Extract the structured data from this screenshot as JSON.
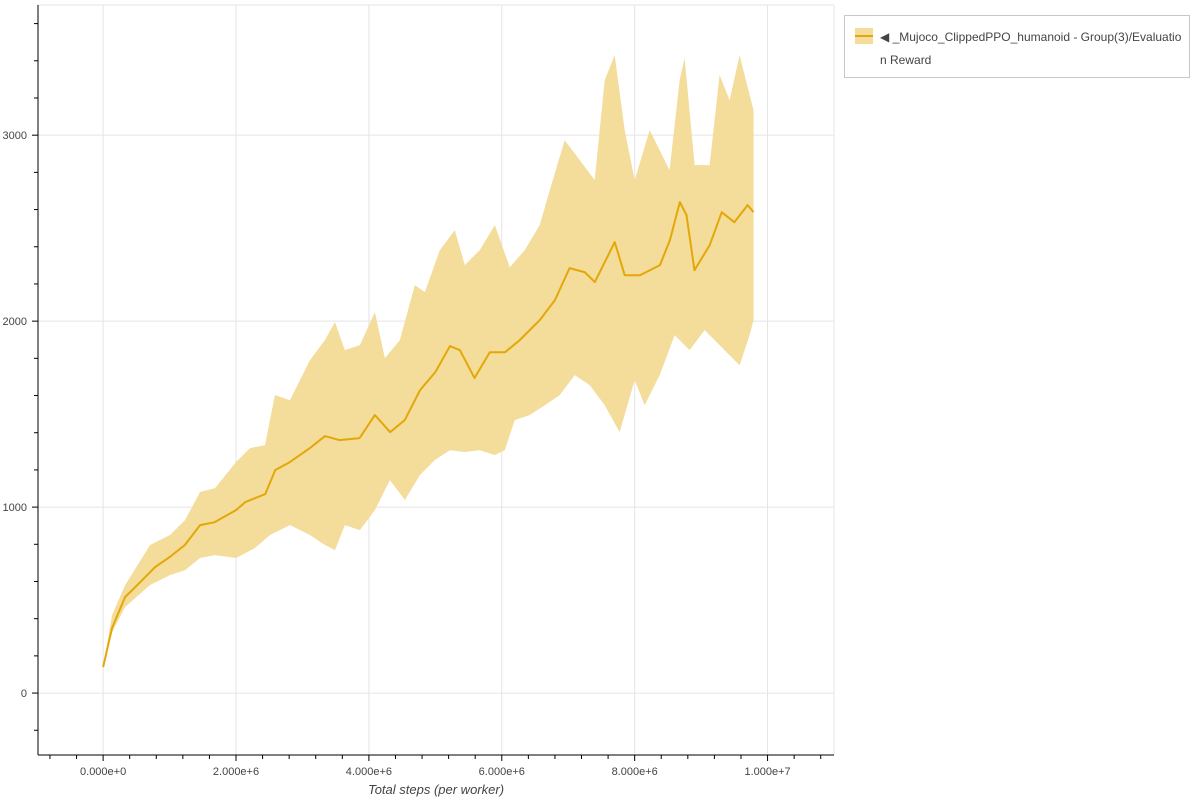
{
  "chart_data": {
    "type": "line",
    "title": "",
    "xlabel": "Total steps (per worker)",
    "ylabel": "",
    "xlim": [
      -980000,
      11000000
    ],
    "ylim": [
      -333,
      3700
    ],
    "x_ticks": [
      0,
      2000000,
      4000000,
      6000000,
      8000000,
      10000000
    ],
    "x_tick_labels": [
      "0.000e+0",
      "2.000e+6",
      "4.000e+6",
      "6.000e+6",
      "8.000e+6",
      "1.000e+7"
    ],
    "y_ticks": [
      0,
      1000,
      2000,
      3000
    ],
    "y_tick_labels": [
      "0",
      "1000",
      "2000",
      "3000"
    ],
    "grid": true,
    "legend_position": "outside-top-right",
    "colors": {
      "line": "#e3a808",
      "band": "#f4dc9a"
    },
    "series": [
      {
        "name": "◀ _Mujoco_ClippedPPO_humanoid - Group(3)/Evaluation Reward",
        "mean": [
          [
            0,
            140
          ],
          [
            135000,
            350
          ],
          [
            330000,
            516
          ],
          [
            560000,
            597
          ],
          [
            780000,
            677
          ],
          [
            1000000,
            731
          ],
          [
            1230000,
            796
          ],
          [
            1460000,
            903
          ],
          [
            1680000,
            919
          ],
          [
            2000000,
            984
          ],
          [
            2140000,
            1027
          ],
          [
            2440000,
            1070
          ],
          [
            2590000,
            1199
          ],
          [
            2810000,
            1242
          ],
          [
            3110000,
            1317
          ],
          [
            3340000,
            1382
          ],
          [
            3560000,
            1360
          ],
          [
            3860000,
            1371
          ],
          [
            4090000,
            1495
          ],
          [
            4320000,
            1403
          ],
          [
            4540000,
            1468
          ],
          [
            4770000,
            1629
          ],
          [
            5000000,
            1726
          ],
          [
            5220000,
            1866
          ],
          [
            5370000,
            1844
          ],
          [
            5590000,
            1694
          ],
          [
            5820000,
            1833
          ],
          [
            6050000,
            1833
          ],
          [
            6270000,
            1898
          ],
          [
            6570000,
            2005
          ],
          [
            6800000,
            2113
          ],
          [
            7020000,
            2285
          ],
          [
            7250000,
            2263
          ],
          [
            7400000,
            2210
          ],
          [
            7700000,
            2425
          ],
          [
            7850000,
            2247
          ],
          [
            8080000,
            2247
          ],
          [
            8380000,
            2301
          ],
          [
            8530000,
            2435
          ],
          [
            8680000,
            2640
          ],
          [
            8780000,
            2570
          ],
          [
            8900000,
            2274
          ],
          [
            9130000,
            2409
          ],
          [
            9310000,
            2586
          ],
          [
            9500000,
            2532
          ],
          [
            9700000,
            2624
          ],
          [
            9790000,
            2586
          ]
        ],
        "upper": [
          [
            0,
            140
          ],
          [
            135000,
            420
          ],
          [
            330000,
            580
          ],
          [
            707000,
            796
          ],
          [
            1007000,
            850
          ],
          [
            1233000,
            930
          ],
          [
            1459000,
            1081
          ],
          [
            1684000,
            1102
          ],
          [
            2000000,
            1242
          ],
          [
            2210000,
            1317
          ],
          [
            2436000,
            1333
          ],
          [
            2586000,
            1602
          ],
          [
            2812000,
            1575
          ],
          [
            3113000,
            1790
          ],
          [
            3338000,
            1898
          ],
          [
            3489000,
            1995
          ],
          [
            3639000,
            1844
          ],
          [
            3865000,
            1871
          ],
          [
            4090000,
            2048
          ],
          [
            4241000,
            1801
          ],
          [
            4466000,
            1898
          ],
          [
            4692000,
            2194
          ],
          [
            4842000,
            2156
          ],
          [
            5068000,
            2382
          ],
          [
            5293000,
            2489
          ],
          [
            5444000,
            2301
          ],
          [
            5669000,
            2382
          ],
          [
            5895000,
            2516
          ],
          [
            6120000,
            2290
          ],
          [
            6346000,
            2382
          ],
          [
            6571000,
            2516
          ],
          [
            6722000,
            2704
          ],
          [
            6947000,
            2973
          ],
          [
            7173000,
            2866
          ],
          [
            7398000,
            2758
          ],
          [
            7549000,
            3296
          ],
          [
            7699000,
            3430
          ],
          [
            7850000,
            3027
          ],
          [
            8000000,
            2758
          ],
          [
            8226000,
            3027
          ],
          [
            8376000,
            2919
          ],
          [
            8526000,
            2812
          ],
          [
            8677000,
            3296
          ],
          [
            8752000,
            3414
          ],
          [
            8902000,
            2839
          ],
          [
            9128000,
            2839
          ],
          [
            9278000,
            3323
          ],
          [
            9429000,
            3188
          ],
          [
            9579000,
            3430
          ],
          [
            9789000,
            3134
          ]
        ],
        "lower": [
          [
            0,
            140
          ],
          [
            135000,
            328
          ],
          [
            330000,
            462
          ],
          [
            707000,
            581
          ],
          [
            1007000,
            634
          ],
          [
            1233000,
            661
          ],
          [
            1459000,
            726
          ],
          [
            1684000,
            742
          ],
          [
            2000000,
            726
          ],
          [
            2286000,
            780
          ],
          [
            2511000,
            850
          ],
          [
            2812000,
            903
          ],
          [
            3113000,
            850
          ],
          [
            3338000,
            796
          ],
          [
            3489000,
            769
          ],
          [
            3639000,
            903
          ],
          [
            3865000,
            876
          ],
          [
            4090000,
            984
          ],
          [
            4316000,
            1145
          ],
          [
            4541000,
            1038
          ],
          [
            4767000,
            1172
          ],
          [
            4992000,
            1253
          ],
          [
            5218000,
            1306
          ],
          [
            5444000,
            1296
          ],
          [
            5669000,
            1306
          ],
          [
            5895000,
            1280
          ],
          [
            6045000,
            1306
          ],
          [
            6195000,
            1468
          ],
          [
            6421000,
            1495
          ],
          [
            6647000,
            1548
          ],
          [
            6872000,
            1602
          ],
          [
            7098000,
            1710
          ],
          [
            7323000,
            1656
          ],
          [
            7549000,
            1548
          ],
          [
            7774000,
            1403
          ],
          [
            8000000,
            1683
          ],
          [
            8150000,
            1548
          ],
          [
            8376000,
            1710
          ],
          [
            8602000,
            1925
          ],
          [
            8827000,
            1844
          ],
          [
            9053000,
            1952
          ],
          [
            9278000,
            1871
          ],
          [
            9579000,
            1763
          ],
          [
            9729000,
            1925
          ],
          [
            9789000,
            2005
          ]
        ]
      }
    ]
  },
  "legend": {
    "label": "◀ _Mujoco_ClippedPPO_humanoid - Group(3)/Evaluation Reward"
  }
}
